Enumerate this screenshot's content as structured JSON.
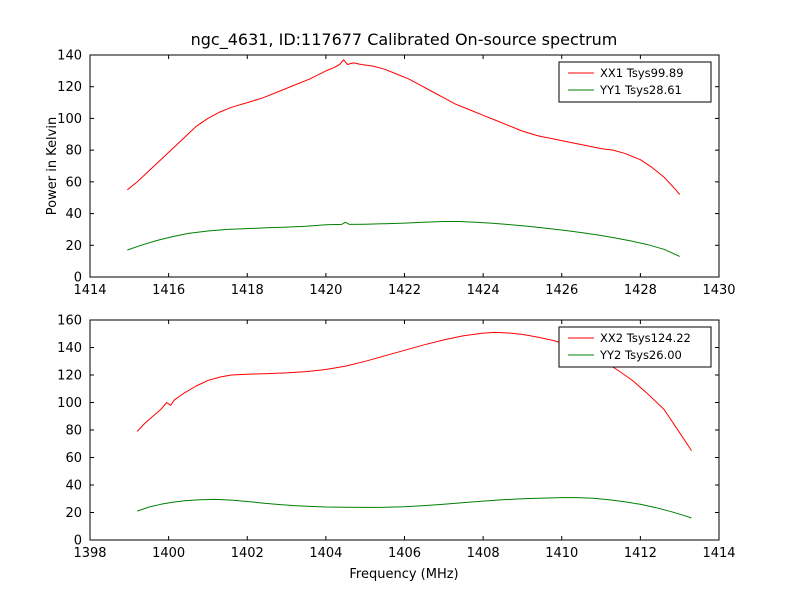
{
  "figure": {
    "title": "ngc_4631, ID:117677 Calibrated On-source spectrum",
    "xlabel": "Frequency (MHz)",
    "ylabel": "Power in Kelvin",
    "background": "#ffffff",
    "axis_color": "#000000"
  },
  "chart_data": [
    {
      "type": "line",
      "ylabel": "Power in Kelvin",
      "xlim": [
        1414,
        1430
      ],
      "ylim": [
        0,
        140
      ],
      "xticks": [
        1414,
        1416,
        1418,
        1420,
        1422,
        1424,
        1426,
        1428,
        1430
      ],
      "yticks": [
        0,
        20,
        40,
        60,
        80,
        100,
        120,
        140
      ],
      "grid": false,
      "legend_position": "upper right",
      "series": [
        {
          "name": "XX1 Tsys99.89",
          "color": "#ff0000",
          "points": [
            [
              1414.95,
              55
            ],
            [
              1415.2,
              60
            ],
            [
              1415.5,
              67
            ],
            [
              1415.8,
              74
            ],
            [
              1416.1,
              81
            ],
            [
              1416.4,
              88
            ],
            [
              1416.7,
              95
            ],
            [
              1417.0,
              100
            ],
            [
              1417.3,
              104
            ],
            [
              1417.6,
              107
            ],
            [
              1418.0,
              110
            ],
            [
              1418.4,
              113
            ],
            [
              1418.8,
              117
            ],
            [
              1419.2,
              121
            ],
            [
              1419.6,
              125
            ],
            [
              1420.0,
              130
            ],
            [
              1420.2,
              132
            ],
            [
              1420.35,
              134
            ],
            [
              1420.45,
              137
            ],
            [
              1420.55,
              134
            ],
            [
              1420.7,
              135
            ],
            [
              1420.9,
              134
            ],
            [
              1421.2,
              133
            ],
            [
              1421.5,
              131
            ],
            [
              1421.8,
              128
            ],
            [
              1422.1,
              125
            ],
            [
              1422.4,
              121
            ],
            [
              1422.7,
              117
            ],
            [
              1423.0,
              113
            ],
            [
              1423.3,
              109
            ],
            [
              1423.6,
              106
            ],
            [
              1424.0,
              102
            ],
            [
              1424.3,
              99
            ],
            [
              1424.6,
              96
            ],
            [
              1425.0,
              92
            ],
            [
              1425.4,
              89
            ],
            [
              1425.8,
              87
            ],
            [
              1426.2,
              85
            ],
            [
              1426.6,
              83
            ],
            [
              1427.0,
              81
            ],
            [
              1427.3,
              80
            ],
            [
              1427.6,
              78
            ],
            [
              1428.0,
              74
            ],
            [
              1428.3,
              69
            ],
            [
              1428.6,
              63
            ],
            [
              1428.9,
              55
            ],
            [
              1429.0,
              52
            ]
          ]
        },
        {
          "name": "YY1 Tsys28.61",
          "color": "#008000",
          "points": [
            [
              1414.95,
              17
            ],
            [
              1415.3,
              20
            ],
            [
              1415.7,
              23
            ],
            [
              1416.1,
              25.5
            ],
            [
              1416.5,
              27.5
            ],
            [
              1417.0,
              29
            ],
            [
              1417.5,
              30
            ],
            [
              1418.0,
              30.5
            ],
            [
              1418.5,
              31
            ],
            [
              1419.0,
              31.5
            ],
            [
              1419.5,
              32
            ],
            [
              1420.0,
              33
            ],
            [
              1420.4,
              33.2
            ],
            [
              1420.5,
              34.5
            ],
            [
              1420.6,
              33.2
            ],
            [
              1421.0,
              33.3
            ],
            [
              1421.5,
              33.6
            ],
            [
              1422.0,
              34
            ],
            [
              1422.5,
              34.5
            ],
            [
              1423.0,
              35
            ],
            [
              1423.4,
              35
            ],
            [
              1423.8,
              34.5
            ],
            [
              1424.2,
              34
            ],
            [
              1424.6,
              33.2
            ],
            [
              1425.0,
              32.3
            ],
            [
              1425.4,
              31.3
            ],
            [
              1425.8,
              30.2
            ],
            [
              1426.2,
              29
            ],
            [
              1426.6,
              27.7
            ],
            [
              1427.0,
              26.2
            ],
            [
              1427.4,
              24.5
            ],
            [
              1427.8,
              22.5
            ],
            [
              1428.2,
              20.3
            ],
            [
              1428.6,
              17.5
            ],
            [
              1429.0,
              13
            ]
          ]
        }
      ]
    },
    {
      "type": "line",
      "ylabel": "",
      "xlim": [
        1398,
        1414
      ],
      "ylim": [
        0,
        160
      ],
      "xticks": [
        1398,
        1400,
        1402,
        1404,
        1406,
        1408,
        1410,
        1412,
        1414
      ],
      "yticks": [
        0,
        20,
        40,
        60,
        80,
        100,
        120,
        140,
        160
      ],
      "grid": false,
      "legend_position": "upper right",
      "series": [
        {
          "name": "XX2 Tsys124.22",
          "color": "#ff0000",
          "points": [
            [
              1399.2,
              79
            ],
            [
              1399.4,
              85
            ],
            [
              1399.6,
              90
            ],
            [
              1399.8,
              95
            ],
            [
              1399.95,
              100
            ],
            [
              1400.05,
              98
            ],
            [
              1400.15,
              102
            ],
            [
              1400.4,
              107
            ],
            [
              1400.7,
              112
            ],
            [
              1401.0,
              116
            ],
            [
              1401.3,
              118.5
            ],
            [
              1401.6,
              120
            ],
            [
              1402.0,
              120.5
            ],
            [
              1402.5,
              121
            ],
            [
              1403.0,
              121.5
            ],
            [
              1403.5,
              122.5
            ],
            [
              1404.0,
              124
            ],
            [
              1404.5,
              126.5
            ],
            [
              1405.0,
              130
            ],
            [
              1405.5,
              134
            ],
            [
              1406.0,
              138
            ],
            [
              1406.5,
              142
            ],
            [
              1407.0,
              145.5
            ],
            [
              1407.5,
              148.5
            ],
            [
              1408.0,
              150.5
            ],
            [
              1408.3,
              151
            ],
            [
              1408.7,
              150.5
            ],
            [
              1409.0,
              149.5
            ],
            [
              1409.4,
              147.5
            ],
            [
              1409.8,
              145
            ],
            [
              1410.2,
              141.5
            ],
            [
              1410.6,
              137
            ],
            [
              1411.0,
              131
            ],
            [
              1411.4,
              124
            ],
            [
              1411.8,
              116
            ],
            [
              1412.2,
              106
            ],
            [
              1412.6,
              95
            ],
            [
              1413.0,
              78
            ],
            [
              1413.3,
              65
            ]
          ]
        },
        {
          "name": "YY2 Tsys26.00",
          "color": "#008000",
          "points": [
            [
              1399.2,
              21
            ],
            [
              1399.5,
              24
            ],
            [
              1399.8,
              26
            ],
            [
              1400.1,
              27.5
            ],
            [
              1400.4,
              28.5
            ],
            [
              1400.8,
              29.3
            ],
            [
              1401.2,
              29.5
            ],
            [
              1401.6,
              29
            ],
            [
              1402.0,
              28
            ],
            [
              1402.4,
              26.8
            ],
            [
              1402.8,
              25.8
            ],
            [
              1403.2,
              25
            ],
            [
              1403.6,
              24.4
            ],
            [
              1404.0,
              24
            ],
            [
              1404.5,
              23.8
            ],
            [
              1405.0,
              23.7
            ],
            [
              1405.5,
              23.8
            ],
            [
              1406.0,
              24.2
            ],
            [
              1406.5,
              25
            ],
            [
              1407.0,
              26
            ],
            [
              1407.5,
              27.2
            ],
            [
              1408.0,
              28.3
            ],
            [
              1408.5,
              29.3
            ],
            [
              1409.0,
              30
            ],
            [
              1409.5,
              30.5
            ],
            [
              1410.0,
              30.8
            ],
            [
              1410.4,
              30.8
            ],
            [
              1410.8,
              30.3
            ],
            [
              1411.2,
              29.3
            ],
            [
              1411.6,
              27.8
            ],
            [
              1412.0,
              26
            ],
            [
              1412.4,
              23.5
            ],
            [
              1412.8,
              20.5
            ],
            [
              1413.1,
              18
            ],
            [
              1413.3,
              16
            ]
          ]
        }
      ]
    }
  ]
}
